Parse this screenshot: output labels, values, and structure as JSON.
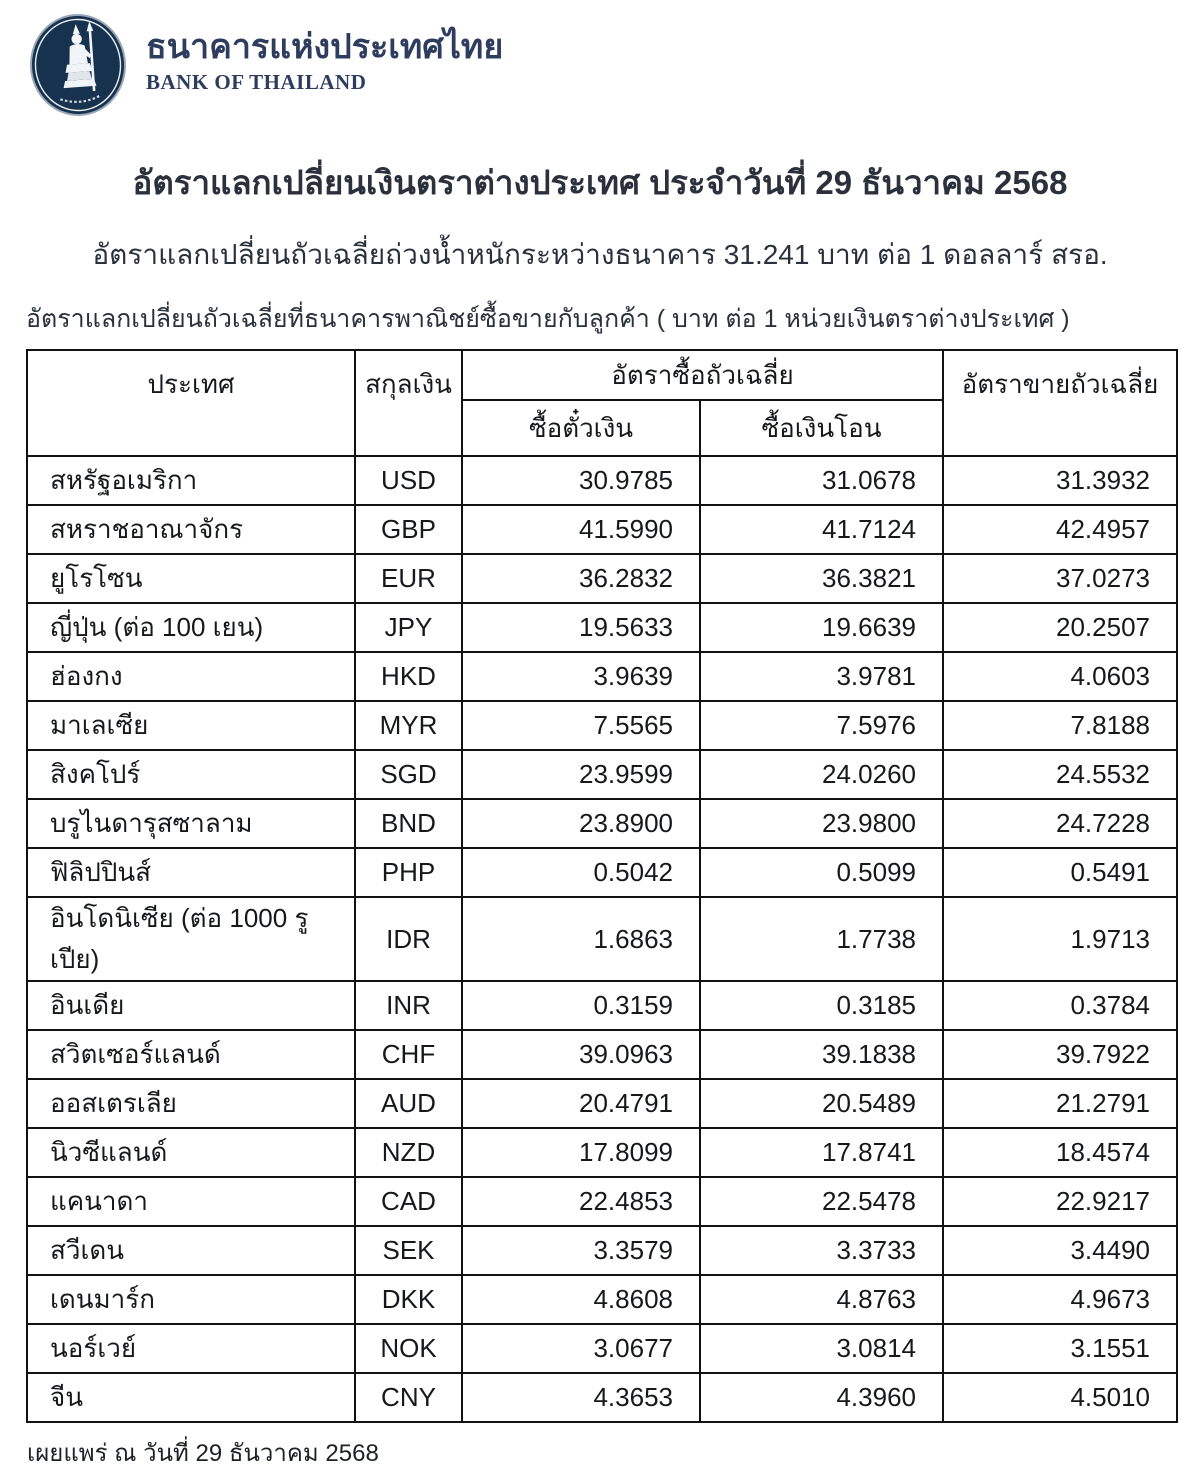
{
  "logo": {
    "thai_name": "ธนาคารแห่งประเทศไทย",
    "english_name": "BANK OF THAILAND",
    "emblem": "seated-deity-with-staff-in-navy-oval",
    "navy_color": "#16324f",
    "text_color": "#2e3d5e"
  },
  "titles": {
    "main": "อัตราแลกเปลี่ยนเงินตราต่างประเทศ ประจำวันที่ 29 ธันวาคม 2568",
    "subtitle": "อัตราแลกเปลี่ยนถัวเฉลี่ยถ่วงน้ำหนักระหว่างธนาคาร 31.241 บาท ต่อ 1 ดอลลาร์ สรอ.",
    "note": "อัตราแลกเปลี่ยนถัวเฉลี่ยที่ธนาคารพาณิชย์ซื้อขายกับลูกค้า ( บาท ต่อ 1 หน่วยเงินตราต่างประเทศ )"
  },
  "table": {
    "headers": {
      "country": "ประเทศ",
      "currency": "สกุลเงิน",
      "avg_buying_rate": "อัตราซื้อถัวเฉลี่ย",
      "buying_sight": "ซื้อตั๋วเงิน",
      "buying_transfer": "ซื้อเงินโอน",
      "avg_selling_rate": "อัตราขายถัวเฉลี่ย"
    },
    "rows": [
      {
        "country": "สหรัฐอเมริกา",
        "currency": "USD",
        "buying_sight": "30.9785",
        "buying_transfer": "31.0678",
        "selling": "31.3932"
      },
      {
        "country": "สหราชอาณาจักร",
        "currency": "GBP",
        "buying_sight": "41.5990",
        "buying_transfer": "41.7124",
        "selling": "42.4957"
      },
      {
        "country": "ยูโรโซน",
        "currency": "EUR",
        "buying_sight": "36.2832",
        "buying_transfer": "36.3821",
        "selling": "37.0273"
      },
      {
        "country": "ญี่ปุ่น (ต่อ 100 เยน)",
        "currency": "JPY",
        "buying_sight": "19.5633",
        "buying_transfer": "19.6639",
        "selling": "20.2507"
      },
      {
        "country": "ฮ่องกง",
        "currency": "HKD",
        "buying_sight": "3.9639",
        "buying_transfer": "3.9781",
        "selling": "4.0603"
      },
      {
        "country": "มาเลเซีย",
        "currency": "MYR",
        "buying_sight": "7.5565",
        "buying_transfer": "7.5976",
        "selling": "7.8188"
      },
      {
        "country": "สิงคโปร์",
        "currency": "SGD",
        "buying_sight": "23.9599",
        "buying_transfer": "24.0260",
        "selling": "24.5532"
      },
      {
        "country": "บรูไนดารุสซาลาม",
        "currency": "BND",
        "buying_sight": "23.8900",
        "buying_transfer": "23.9800",
        "selling": "24.7228"
      },
      {
        "country": "ฟิลิปปินส์",
        "currency": "PHP",
        "buying_sight": "0.5042",
        "buying_transfer": "0.5099",
        "selling": "0.5491"
      },
      {
        "country": "อินโดนิเซีย (ต่อ 1000 รูเปีย)",
        "currency": "IDR",
        "buying_sight": "1.6863",
        "buying_transfer": "1.7738",
        "selling": "1.9713"
      },
      {
        "country": "อินเดีย",
        "currency": "INR",
        "buying_sight": "0.3159",
        "buying_transfer": "0.3185",
        "selling": "0.3784"
      },
      {
        "country": "สวิตเซอร์แลนด์",
        "currency": "CHF",
        "buying_sight": "39.0963",
        "buying_transfer": "39.1838",
        "selling": "39.7922"
      },
      {
        "country": "ออสเตรเลีย",
        "currency": "AUD",
        "buying_sight": "20.4791",
        "buying_transfer": "20.5489",
        "selling": "21.2791"
      },
      {
        "country": "นิวซีแลนด์",
        "currency": "NZD",
        "buying_sight": "17.8099",
        "buying_transfer": "17.8741",
        "selling": "18.4574"
      },
      {
        "country": "แคนาดา",
        "currency": "CAD",
        "buying_sight": "22.4853",
        "buying_transfer": "22.5478",
        "selling": "22.9217"
      },
      {
        "country": "สวีเดน",
        "currency": "SEK",
        "buying_sight": "3.3579",
        "buying_transfer": "3.3733",
        "selling": "3.4490"
      },
      {
        "country": "เดนมาร์ก",
        "currency": "DKK",
        "buying_sight": "4.8608",
        "buying_transfer": "4.8763",
        "selling": "4.9673"
      },
      {
        "country": "นอร์เวย์",
        "currency": "NOK",
        "buying_sight": "3.0677",
        "buying_transfer": "3.0814",
        "selling": "3.1551"
      },
      {
        "country": "จีน",
        "currency": "CNY",
        "buying_sight": "4.3653",
        "buying_transfer": "4.3960",
        "selling": "4.5010"
      }
    ]
  },
  "footer": {
    "published": "เผยแพร่ ณ วันที่ 29 ธันวาคม 2568"
  }
}
